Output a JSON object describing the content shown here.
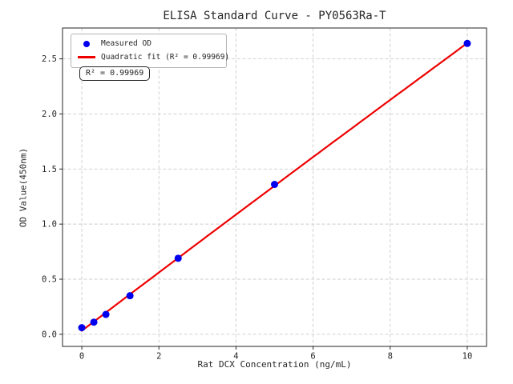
{
  "chart_data": {
    "type": "scatter",
    "title": "ELISA Standard Curve - PY0563Ra-T",
    "xlabel": "Rat DCX Concentration (ng/mL)",
    "ylabel": "OD Value(450nm)",
    "xlim": [
      -0.5,
      10.5
    ],
    "ylim": [
      -0.11,
      2.78
    ],
    "grid": true,
    "legend_position": "upper left",
    "xticks": {
      "values": [
        0,
        2,
        4,
        6,
        8,
        10
      ],
      "labels": [
        "0",
        "2",
        "4",
        "6",
        "8",
        "10"
      ]
    },
    "yticks": {
      "values": [
        0.0,
        0.5,
        1.0,
        1.5,
        2.0,
        2.5
      ],
      "labels": [
        "0.0",
        "0.5",
        "1.0",
        "1.5",
        "2.0",
        "2.5"
      ]
    },
    "series": [
      {
        "name": "Measured OD",
        "kind": "scatter",
        "color": "#0000ee",
        "x": [
          0,
          0.3125,
          0.625,
          1.25,
          2.5,
          5,
          10
        ],
        "y": [
          0.06,
          0.11,
          0.18,
          0.35,
          0.69,
          1.36,
          2.64
        ]
      },
      {
        "name": "Quadratic fit (R² = 0.99969)",
        "kind": "line",
        "fit": "quadratic",
        "color": "#ee0000",
        "x_range": [
          0,
          10
        ]
      }
    ],
    "colors": {
      "grid": "#cccccc",
      "axis": "#262626",
      "background": "#ffffff"
    }
  },
  "legend": {
    "items": [
      {
        "label": "Measured OD",
        "color": "#0000ee",
        "marker": "dot"
      },
      {
        "label": "Quadratic fit (R² = 0.99969)",
        "color": "#ee0000",
        "marker": "line"
      }
    ]
  },
  "annotation": {
    "text": "R² = 0.99969"
  }
}
